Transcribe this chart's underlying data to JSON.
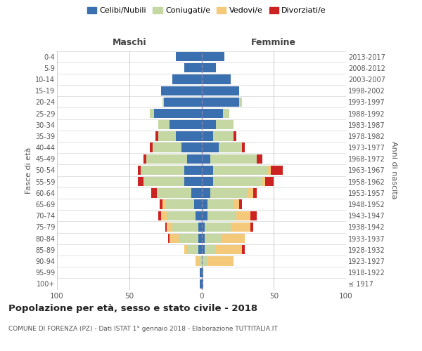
{
  "age_groups": [
    "100+",
    "95-99",
    "90-94",
    "85-89",
    "80-84",
    "75-79",
    "70-74",
    "65-69",
    "60-64",
    "55-59",
    "50-54",
    "45-49",
    "40-44",
    "35-39",
    "30-34",
    "25-29",
    "20-24",
    "15-19",
    "10-14",
    "5-9",
    "0-4"
  ],
  "birth_years": [
    "≤ 1917",
    "1918-1922",
    "1923-1927",
    "1928-1932",
    "1933-1937",
    "1938-1942",
    "1943-1947",
    "1948-1952",
    "1953-1957",
    "1958-1962",
    "1963-1967",
    "1968-1972",
    "1973-1977",
    "1978-1982",
    "1983-1987",
    "1988-1992",
    "1993-1997",
    "1998-2002",
    "2003-2007",
    "2008-2012",
    "2013-2017"
  ],
  "colors": {
    "celibi": "#3a6fb0",
    "coniugati": "#c5d8a4",
    "vedovi": "#f5c97a",
    "divorziati": "#cc2222"
  },
  "legend_labels": [
    "Celibi/Nubili",
    "Coniugati/e",
    "Vedovi/e",
    "Divorziati/e"
  ],
  "legend_colors": [
    "#3a6fb0",
    "#c5d8a4",
    "#f5c97a",
    "#cc2222"
  ],
  "males": {
    "celibi": [
      1,
      1,
      0,
      2,
      2,
      2,
      4,
      5,
      7,
      12,
      12,
      10,
      14,
      18,
      22,
      33,
      26,
      28,
      20,
      12,
      18
    ],
    "coniugati": [
      0,
      0,
      1,
      8,
      14,
      18,
      20,
      20,
      24,
      28,
      30,
      28,
      20,
      12,
      8,
      3,
      1,
      0,
      0,
      0,
      0
    ],
    "vedovi": [
      0,
      0,
      3,
      2,
      6,
      4,
      4,
      2,
      0,
      0,
      0,
      0,
      0,
      0,
      0,
      0,
      0,
      0,
      0,
      0,
      0
    ],
    "divorziati": [
      0,
      0,
      0,
      0,
      1,
      1,
      2,
      2,
      4,
      4,
      2,
      2,
      2,
      2,
      0,
      0,
      0,
      0,
      0,
      0,
      0
    ]
  },
  "females": {
    "nubili": [
      1,
      1,
      0,
      2,
      2,
      2,
      4,
      4,
      6,
      8,
      8,
      6,
      12,
      8,
      10,
      15,
      26,
      26,
      20,
      10,
      16
    ],
    "coniugate": [
      0,
      0,
      4,
      8,
      12,
      18,
      20,
      18,
      26,
      34,
      38,
      32,
      16,
      14,
      12,
      4,
      2,
      0,
      0,
      0,
      0
    ],
    "vedove": [
      0,
      0,
      18,
      18,
      16,
      14,
      10,
      4,
      4,
      2,
      2,
      0,
      0,
      0,
      0,
      0,
      0,
      0,
      0,
      0,
      0
    ],
    "divorziate": [
      0,
      0,
      0,
      2,
      0,
      2,
      4,
      2,
      2,
      6,
      8,
      4,
      2,
      2,
      0,
      0,
      0,
      0,
      0,
      0,
      0
    ]
  },
  "xlim": [
    -100,
    100
  ],
  "xticks": [
    -100,
    -50,
    0,
    50,
    100
  ],
  "xticklabels": [
    "100",
    "50",
    "0",
    "50",
    "100"
  ],
  "title": "Popolazione per età, sesso e stato civile - 2018",
  "subtitle": "COMUNE DI FORENZA (PZ) - Dati ISTAT 1° gennaio 2018 - Elaborazione TUTTITALIA.IT",
  "ylabel_left": "Fasce di età",
  "ylabel_right": "Anni di nascita",
  "header_maschi": "Maschi",
  "header_femmine": "Femmine",
  "background_color": "#ffffff",
  "grid_color": "#cccccc",
  "bar_height": 0.82
}
